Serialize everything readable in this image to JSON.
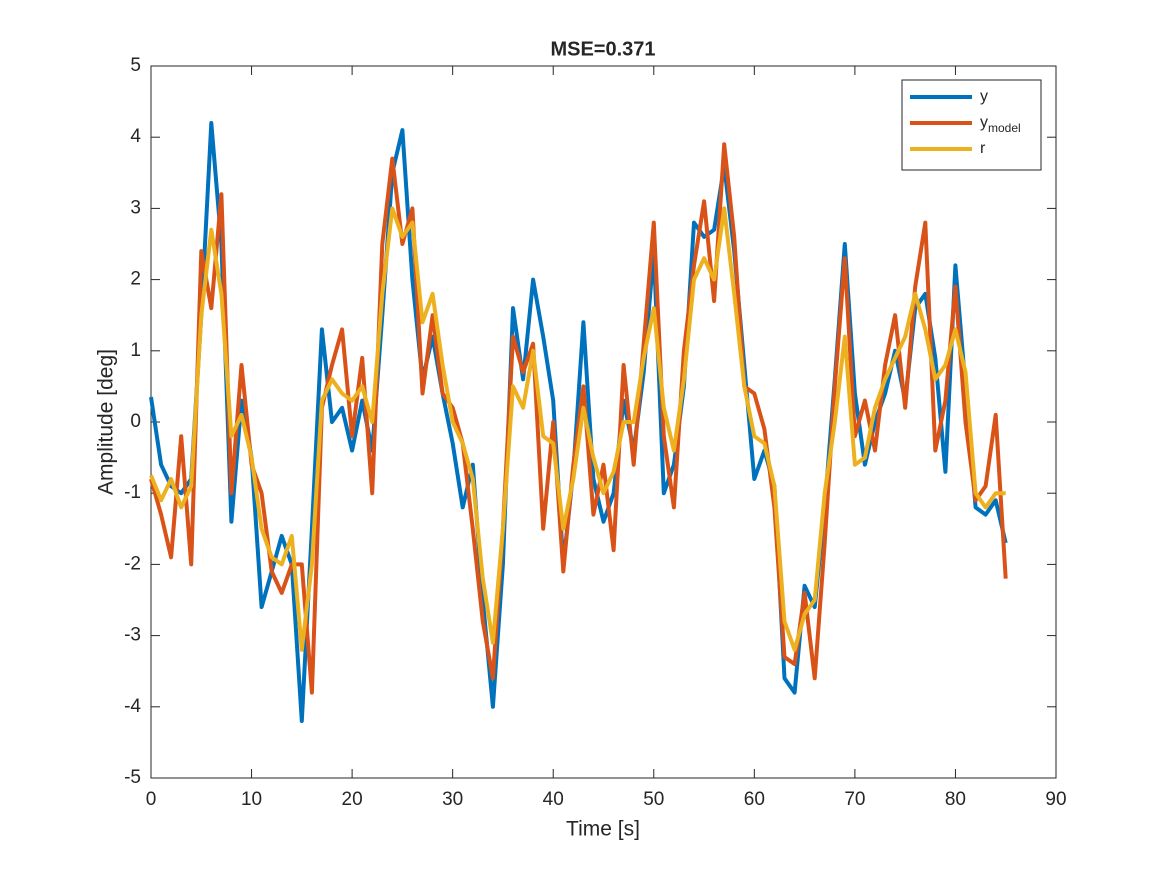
{
  "chart_data": {
    "type": "line",
    "title": "MSE=0.371",
    "xlabel": "Time [s]",
    "ylabel": "Amplitude [deg]",
    "x": [
      0,
      1,
      2,
      3,
      4,
      5,
      6,
      7,
      8,
      9,
      10,
      11,
      12,
      13,
      14,
      15,
      16,
      17,
      18,
      19,
      20,
      21,
      22,
      23,
      24,
      25,
      26,
      27,
      28,
      29,
      30,
      31,
      32,
      33,
      34,
      35,
      36,
      37,
      38,
      39,
      40,
      41,
      42,
      43,
      44,
      45,
      46,
      47,
      48,
      49,
      50,
      51,
      52,
      53,
      54,
      55,
      56,
      57,
      58,
      59,
      60,
      61,
      62,
      63,
      64,
      65,
      66,
      67,
      68,
      69,
      70,
      71,
      72,
      73,
      74,
      75,
      76,
      77,
      78,
      79,
      80,
      81,
      82,
      83,
      84,
      85
    ],
    "series": [
      {
        "name": "y",
        "color": "#0072BD",
        "values": [
          0.35,
          -0.6,
          -0.9,
          -1.0,
          -0.8,
          1.5,
          4.2,
          2.5,
          -1.4,
          0.3,
          -0.5,
          -2.6,
          -2.1,
          -1.6,
          -2.0,
          -4.2,
          -1.5,
          1.3,
          0.0,
          0.2,
          -0.4,
          0.3,
          -0.4,
          1.5,
          3.5,
          4.1,
          2.0,
          0.6,
          1.2,
          0.4,
          -0.3,
          -1.2,
          -0.6,
          -2.5,
          -4.0,
          -2.0,
          1.6,
          0.6,
          2.0,
          1.2,
          0.3,
          -2.0,
          -0.7,
          1.4,
          -0.8,
          -1.4,
          -1.0,
          0.3,
          -0.4,
          0.7,
          2.4,
          -1.0,
          -0.6,
          0.5,
          2.8,
          2.6,
          2.7,
          3.6,
          2.4,
          0.8,
          -0.8,
          -0.4,
          -0.9,
          -3.6,
          -3.8,
          -2.3,
          -2.6,
          -1.2,
          0.6,
          2.5,
          0.4,
          -0.6,
          0.0,
          0.4,
          1.0,
          0.3,
          1.6,
          1.8,
          0.9,
          -0.7,
          2.2,
          0.5,
          -1.2,
          -1.3,
          -1.1,
          -1.7
        ]
      },
      {
        "name": "y_{model}",
        "color": "#D95319",
        "values": [
          -0.8,
          -1.3,
          -1.9,
          -0.2,
          -2.0,
          2.4,
          1.6,
          3.2,
          -1.0,
          0.8,
          -0.6,
          -1.0,
          -2.1,
          -2.4,
          -2.0,
          -2.0,
          -3.8,
          0.2,
          0.8,
          1.3,
          -0.2,
          0.9,
          -1.0,
          2.5,
          3.7,
          2.5,
          3.0,
          0.4,
          1.5,
          0.4,
          0.2,
          -0.3,
          -1.5,
          -2.8,
          -3.6,
          -1.5,
          1.2,
          0.7,
          1.1,
          -1.5,
          0.0,
          -2.1,
          -0.6,
          0.5,
          -1.3,
          -0.6,
          -1.8,
          0.8,
          -0.6,
          1.1,
          2.8,
          -0.2,
          -1.2,
          1.0,
          2.2,
          3.1,
          1.7,
          3.9,
          2.6,
          0.5,
          0.4,
          -0.1,
          -1.2,
          -3.3,
          -3.4,
          -2.4,
          -3.6,
          -1.7,
          0.5,
          2.3,
          -0.2,
          0.3,
          -0.4,
          0.8,
          1.5,
          0.2,
          1.9,
          2.8,
          -0.4,
          0.3,
          1.9,
          0.0,
          -1.1,
          -0.9,
          0.1,
          -2.2
        ]
      },
      {
        "name": "r",
        "color": "#EDB120",
        "values": [
          -0.75,
          -1.1,
          -0.8,
          -1.2,
          -0.9,
          1.5,
          2.7,
          1.8,
          -0.2,
          0.1,
          -0.5,
          -1.5,
          -1.9,
          -2.0,
          -1.6,
          -3.2,
          -2.0,
          0.3,
          0.6,
          0.4,
          0.3,
          0.5,
          0.0,
          1.8,
          3.0,
          2.6,
          2.8,
          1.4,
          1.8,
          0.8,
          0.0,
          -0.3,
          -0.8,
          -2.2,
          -3.1,
          -1.5,
          0.5,
          0.2,
          1.0,
          -0.2,
          -0.3,
          -1.5,
          -0.8,
          0.2,
          -0.5,
          -1.0,
          -0.7,
          0.0,
          0.0,
          0.9,
          1.6,
          0.2,
          -0.4,
          0.6,
          2.0,
          2.3,
          2.0,
          3.0,
          1.8,
          0.5,
          -0.2,
          -0.3,
          -0.9,
          -2.8,
          -3.2,
          -2.7,
          -2.5,
          -1.0,
          0.0,
          1.2,
          -0.6,
          -0.5,
          0.2,
          0.6,
          0.9,
          1.2,
          1.8,
          1.3,
          0.6,
          0.8,
          1.3,
          0.7,
          -1.0,
          -1.2,
          -1.0,
          -1.0
        ]
      }
    ],
    "xlim": [
      0,
      90
    ],
    "xticks": [
      0,
      10,
      20,
      30,
      40,
      50,
      60,
      70,
      80,
      90
    ],
    "ylim": [
      -5,
      5
    ],
    "yticks": [
      -5,
      -4,
      -3,
      -2,
      -1,
      0,
      1,
      2,
      3,
      4,
      5
    ],
    "legend": "northeast"
  }
}
